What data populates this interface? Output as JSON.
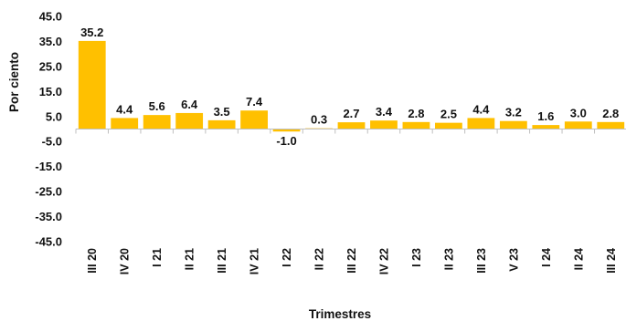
{
  "chart_data": {
    "type": "bar",
    "categories": [
      "III 20",
      "IV 20",
      "I 21",
      "II 21",
      "III 21",
      "IV 21",
      "I 22",
      "II 22",
      "III 22",
      "IV 22",
      "I 23",
      "II 23",
      "III 23",
      "V 23",
      "I 24",
      "II 24",
      "III 24"
    ],
    "values": [
      35.2,
      4.4,
      5.6,
      6.4,
      3.5,
      7.4,
      -1.0,
      0.3,
      2.7,
      3.4,
      2.8,
      2.5,
      4.4,
      3.2,
      1.6,
      3.0,
      2.8
    ],
    "data_labels": [
      "35.2",
      "4.4",
      "5.6",
      "6.4",
      "3.5",
      "7.4",
      "-1.0",
      "0.3",
      "2.7",
      "3.4",
      "2.8",
      "2.5",
      "4.4",
      "3.2",
      "1.6",
      "3.0",
      "2.8"
    ],
    "ylim": [
      -45,
      45
    ],
    "yticks": [
      45,
      35,
      25,
      15,
      5,
      -5,
      -15,
      -25,
      -35,
      -45
    ],
    "ytick_labels": [
      "45.0",
      "35.0",
      "25.0",
      "15.0",
      "5.0",
      "-5.0",
      "-15.0",
      "-25.0",
      "-35.0",
      "-45.0"
    ],
    "xlabel": "Trimestres",
    "ylabel": "Por ciento",
    "title": "",
    "grid": false,
    "legend": "none",
    "bar_color": "#FFC000",
    "axis_color": "#BFBFBF"
  }
}
